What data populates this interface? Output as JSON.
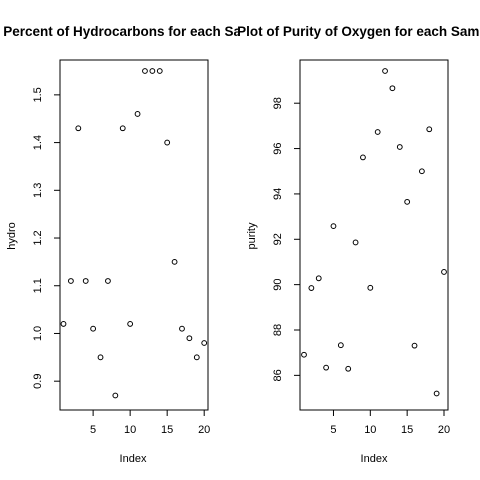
{
  "chart_data": [
    {
      "type": "scatter",
      "title": "Plot of Percent of Hydrocarbons for each Sample",
      "xlabel": "Index",
      "ylabel": "hydro",
      "xlim": [
        1,
        20
      ],
      "ylim": [
        0.87,
        1.55
      ],
      "xticks": [
        5,
        10,
        15,
        20
      ],
      "yticks": [
        0.9,
        1.0,
        1.1,
        1.2,
        1.3,
        1.4,
        1.5
      ],
      "yticklabels": [
        "0.9",
        "1.0",
        "1.1",
        "1.2",
        "1.3",
        "1.4",
        "1.5"
      ],
      "grid": false,
      "x": [
        1,
        2,
        3,
        4,
        5,
        6,
        7,
        8,
        9,
        10,
        11,
        12,
        13,
        14,
        15,
        16,
        17,
        18,
        19,
        20
      ],
      "y": [
        1.02,
        1.11,
        1.43,
        1.11,
        1.01,
        0.95,
        1.11,
        0.87,
        1.43,
        1.02,
        1.46,
        1.55,
        1.55,
        1.55,
        1.4,
        1.15,
        1.01,
        0.99,
        0.95,
        0.98
      ]
    },
    {
      "type": "scatter",
      "title": "Plot of Purity of Oxygen for each Sample",
      "xlabel": "Index",
      "ylabel": "purity",
      "xlim": [
        1,
        20
      ],
      "ylim": [
        85.2,
        99.42
      ],
      "xticks": [
        5,
        10,
        15,
        20
      ],
      "yticks": [
        86,
        88,
        90,
        92,
        94,
        96,
        98
      ],
      "yticklabels": [
        "86",
        "88",
        "90",
        "92",
        "94",
        "96",
        "98"
      ],
      "grid": false,
      "x": [
        1,
        2,
        3,
        4,
        5,
        6,
        7,
        8,
        9,
        10,
        11,
        12,
        13,
        14,
        15,
        16,
        17,
        18,
        19,
        20
      ],
      "y": [
        86.91,
        89.85,
        90.28,
        86.34,
        92.58,
        87.33,
        86.29,
        91.86,
        95.61,
        89.86,
        96.73,
        99.42,
        98.66,
        96.07,
        93.65,
        87.31,
        95.0,
        96.85,
        85.2,
        90.56
      ]
    }
  ]
}
